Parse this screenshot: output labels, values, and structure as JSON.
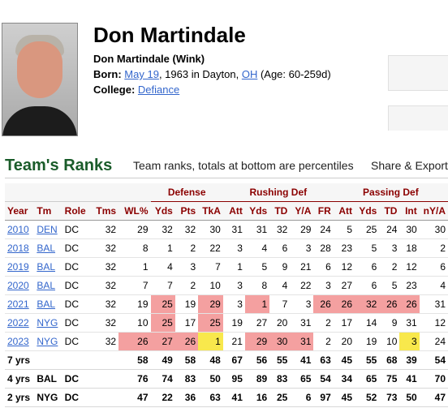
{
  "player": {
    "name": "Don Martindale",
    "full_line": "Don Martindale  (Wink)",
    "born_label": "Born:",
    "born_date": "May 19",
    "born_year": ", 1963 in Dayton, ",
    "born_state": "OH",
    "born_age": " (Age: 60-259d)",
    "college_label": "College:",
    "college": "Defiance"
  },
  "section": {
    "title": "Team's Ranks",
    "note": "Team ranks, totals at bottom are percentiles",
    "share": "Share & Export"
  },
  "table": {
    "groups": [
      "Defense",
      "Rushing Def",
      "Passing Def"
    ],
    "columns": [
      "Year",
      "Tm",
      "Role",
      "Tms",
      "WL%",
      "Yds",
      "Pts",
      "TkA",
      "Att",
      "Yds",
      "TD",
      "Y/A",
      "FR",
      "Att",
      "Yds",
      "TD",
      "Int",
      "nY/A"
    ],
    "rows": [
      [
        "2010",
        "DEN",
        "DC",
        "32",
        "29",
        "32",
        "32",
        "30",
        "31",
        "31",
        "32",
        "29",
        "24",
        "5",
        "25",
        "24",
        "30",
        "30"
      ],
      [
        "2018",
        "BAL",
        "DC",
        "32",
        "8",
        "1",
        "2",
        "22",
        "3",
        "4",
        "6",
        "3",
        "28",
        "23",
        "5",
        "3",
        "18",
        "2"
      ],
      [
        "2019",
        "BAL",
        "DC",
        "32",
        "1",
        "4",
        "3",
        "7",
        "1",
        "5",
        "9",
        "21",
        "6",
        "12",
        "6",
        "2",
        "12",
        "6"
      ],
      [
        "2020",
        "BAL",
        "DC",
        "32",
        "7",
        "7",
        "2",
        "10",
        "3",
        "8",
        "4",
        "22",
        "3",
        "27",
        "6",
        "5",
        "23",
        "4"
      ],
      [
        "2021",
        "BAL",
        "DC",
        "32",
        "19",
        "25",
        "19",
        "29",
        "3",
        "1",
        "7",
        "3",
        "26",
        "26",
        "32",
        "26",
        "26",
        "31"
      ],
      [
        "2022",
        "NYG",
        "DC",
        "32",
        "10",
        "25",
        "17",
        "25",
        "19",
        "27",
        "20",
        "31",
        "2",
        "17",
        "14",
        "9",
        "31",
        "12"
      ],
      [
        "2023",
        "NYG",
        "DC",
        "32",
        "26",
        "27",
        "26",
        "1",
        "21",
        "29",
        "30",
        "31",
        "2",
        "20",
        "19",
        "10",
        "3",
        "24"
      ]
    ],
    "summary": [
      [
        "7 yrs",
        "",
        "",
        "",
        "58",
        "49",
        "58",
        "48",
        "67",
        "56",
        "55",
        "41",
        "63",
        "45",
        "55",
        "68",
        "39",
        "54"
      ],
      [
        "4 yrs",
        "BAL",
        "DC",
        "",
        "76",
        "74",
        "83",
        "50",
        "95",
        "89",
        "83",
        "65",
        "54",
        "34",
        "65",
        "75",
        "41",
        "70"
      ],
      [
        "2 yrs",
        "NYG",
        "DC",
        "",
        "47",
        "22",
        "36",
        "63",
        "41",
        "16",
        "25",
        "6",
        "97",
        "45",
        "52",
        "73",
        "50",
        "47"
      ]
    ]
  },
  "colors": {
    "title_green": "#1a5c2a",
    "header_red": "#8b0000",
    "highlight_red": "#f4a0a0",
    "highlight_yellow": "#f8e84c",
    "link_blue": "#3366cc"
  }
}
